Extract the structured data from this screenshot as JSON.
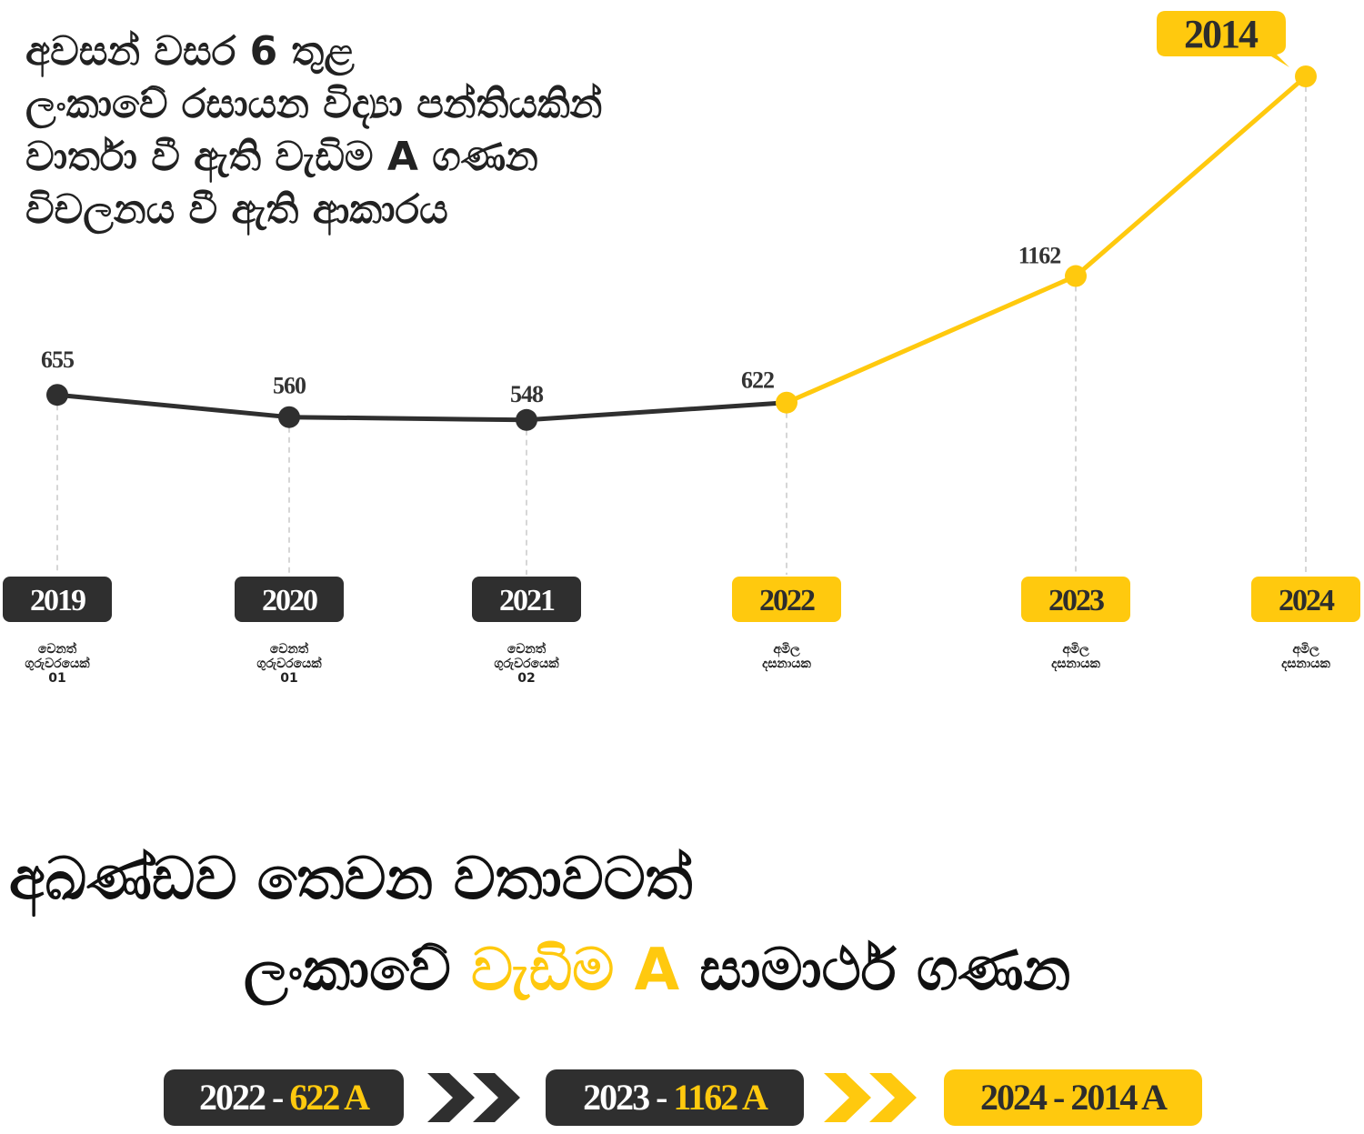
{
  "title": {
    "lines": [
      "අවසන් වසර 6 තුළ",
      "ලංකාවේ රසායන විද්‍යා පන්තියකින්",
      "වාර්තා වී ඇති වැඩිම A ගණන",
      "විචලනය වී ඇති ආකාරය"
    ]
  },
  "chart_data": {
    "type": "line",
    "categories": [
      "2019",
      "2020",
      "2021",
      "2022",
      "2023",
      "2024"
    ],
    "values": [
      655,
      560,
      548,
      622,
      1162,
      2014
    ],
    "data_labels": [
      "655",
      "560",
      "548",
      "622",
      "1162",
      "2014"
    ],
    "teachers": [
      [
        "වෙනත්",
        "ගුරුවරයෙක්",
        "01"
      ],
      [
        "වෙනත්",
        "ගුරුවරයෙක්",
        "01"
      ],
      [
        "වෙනත්",
        "ගුරුවරයෙක්",
        "02"
      ],
      [
        "අමිල",
        "දසනායක"
      ],
      [
        "අමිල",
        "දසනායක"
      ],
      [
        "අමිල",
        "දසනායක"
      ]
    ],
    "segments": [
      {
        "from": 0,
        "to": 3,
        "color": "#2f2f2f"
      },
      {
        "from": 3,
        "to": 5,
        "color": "#ffc90e"
      }
    ],
    "point_colors": [
      "#2f2f2f",
      "#2f2f2f",
      "#2f2f2f",
      "#ffc90e",
      "#ffc90e",
      "#ffc90e"
    ],
    "ylim": [
      0,
      2014
    ],
    "grid": false,
    "legend": "none"
  },
  "slogan": {
    "line1": "අඛණ්ඩව තෙවන වතාවටත්",
    "line2_prefix": "ලංකාවේ ",
    "line2_highlight": "වැඩිම A",
    "line2_suffix": " සාමාර්ථ ගණන"
  },
  "summary": [
    {
      "year": "2022 -",
      "value": "622 A",
      "style": "dark"
    },
    {
      "year": "2023 -",
      "value": "1162 A",
      "style": "dark"
    },
    {
      "year": "2024 -",
      "value": "2014 A",
      "style": "yellow"
    }
  ],
  "colors": {
    "dark": "#2f2f2f",
    "accent": "#ffc90e"
  }
}
